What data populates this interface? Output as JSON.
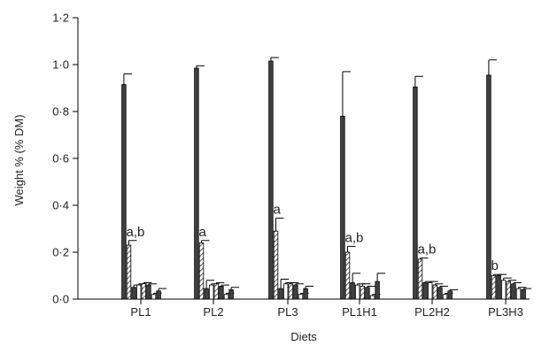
{
  "chart_data": {
    "type": "bar",
    "xlabel": "Diets",
    "ylabel": "Weight % (% DM)",
    "ylim": [
      0,
      1.2
    ],
    "yticks": [
      "0·0",
      "0·2",
      "0·4",
      "0·6",
      "0·8",
      "1·0",
      "1·2"
    ],
    "categories": [
      "PL1",
      "PL2",
      "PL3",
      "PL1H1",
      "PL2H2",
      "PL3H3"
    ],
    "series": [
      {
        "fill": "#404040",
        "values": [
          0.915,
          0.985,
          1.015,
          0.78,
          0.905,
          0.955
        ],
        "errors": [
          0.045,
          0.01,
          0.015,
          0.19,
          0.045,
          0.065
        ]
      },
      {
        "fill": "hatch",
        "values": [
          0.23,
          0.24,
          0.29,
          0.2,
          0.17,
          0.1
        ],
        "errors": [
          0.02,
          0.01,
          0.055,
          0.025,
          0.005,
          0.005
        ]
      },
      {
        "fill": "#404040",
        "values": [
          0.05,
          0.045,
          0.045,
          0.07,
          0.07,
          0.1
        ],
        "errors": [
          0.01,
          0.035,
          0.04,
          0.04,
          0.005,
          0.005
        ]
      },
      {
        "fill": "#ffffff",
        "values": [
          0.06,
          0.06,
          0.065,
          0.06,
          0.07,
          0.08
        ],
        "errors": [
          0.005,
          0.005,
          0.005,
          0.005,
          0.005,
          0.01
        ]
      },
      {
        "fill": "hatch",
        "values": [
          0.065,
          0.065,
          0.065,
          0.055,
          0.06,
          0.075
        ],
        "errors": [
          0.005,
          0.005,
          0.005,
          0.01,
          0.005,
          0.005
        ]
      },
      {
        "fill": "#404040",
        "values": [
          0.06,
          0.055,
          0.06,
          0.05,
          0.05,
          0.065
        ],
        "errors": [
          0.005,
          0.005,
          0.005,
          0.005,
          0.005,
          0.005
        ]
      },
      {
        "fill": "#ffffff",
        "values": [
          0.02,
          0.02,
          0.02,
          0.015,
          0.02,
          0.045
        ],
        "errors": [
          0.005,
          0.005,
          0.005,
          0.005,
          0.005,
          0.005
        ]
      },
      {
        "fill": "#404040",
        "values": [
          0.035,
          0.04,
          0.045,
          0.075,
          0.035,
          0.04
        ],
        "errors": [
          0.01,
          0.01,
          0.01,
          0.035,
          0.005,
          0.005
        ]
      }
    ],
    "annotations": [
      {
        "group": 0,
        "series": 1,
        "text": "a,b"
      },
      {
        "group": 1,
        "series": 1,
        "text": "a"
      },
      {
        "group": 2,
        "series": 1,
        "text": "a"
      },
      {
        "group": 3,
        "series": 1,
        "text": "a,b"
      },
      {
        "group": 4,
        "series": 1,
        "text": "a,b"
      },
      {
        "group": 5,
        "series": 1,
        "text": "b"
      }
    ],
    "grid": false,
    "legend": "none"
  }
}
